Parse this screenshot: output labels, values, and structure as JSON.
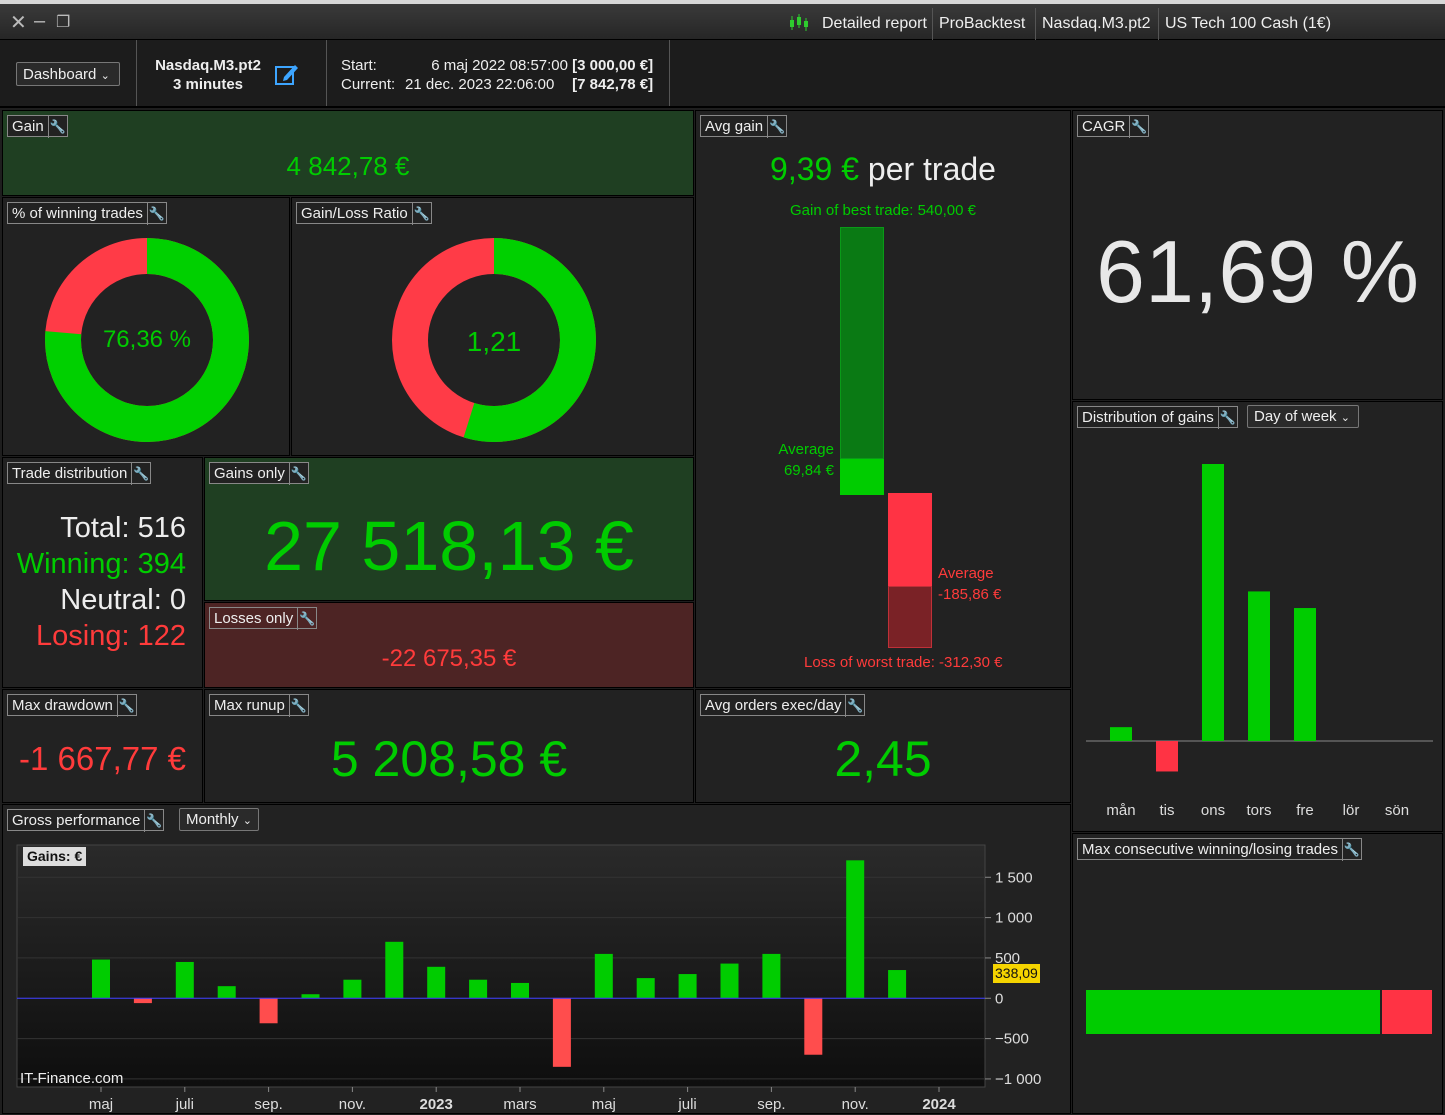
{
  "titlebar": {
    "tabs": [
      "Detailed report",
      "ProBacktest",
      "Nasdaq.M3.pt2",
      "US Tech 100 Cash (1€)"
    ]
  },
  "toolbar": {
    "dashboard_label": "Dashboard",
    "system_name": "Nasdaq.M3.pt2",
    "timeframe": "3 minutes",
    "start_label": "Start:",
    "start_value": "6 maj 2022 08:57:00",
    "start_capital": "[3 000,00 €]",
    "current_label": "Current:",
    "current_value": "21 dec. 2023 22:06:00",
    "current_capital": "[7 842,78 €]"
  },
  "gain": {
    "title": "Gain",
    "value": "4 842,78 €"
  },
  "winning_pct": {
    "title": "% of winning trades",
    "value": "76,36 %",
    "fraction": 0.7636
  },
  "gain_loss_ratio": {
    "title": "Gain/Loss Ratio",
    "value": "1,21",
    "fraction": 0.548
  },
  "avg_gain": {
    "title": "Avg gain",
    "value": "9,39 €",
    "suffix": "per trade",
    "best_label": "Gain of best trade: 540,00 €",
    "avg_gain_label": "Average",
    "avg_gain_value": "69,84 €",
    "avg_loss_label": "Average",
    "avg_loss_value": "-185,86 €",
    "worst_label": "Loss of worst trade: -312,30 €"
  },
  "cagr": {
    "title": "CAGR",
    "value": "61,69 %"
  },
  "trade_distribution": {
    "title": "Trade distribution",
    "total": "Total: 516",
    "winning": "Winning: 394",
    "neutral": "Neutral: 0",
    "losing": "Losing: 122"
  },
  "gains_only": {
    "title": "Gains only",
    "value": "27 518,13 €"
  },
  "losses_only": {
    "title": "Losses only",
    "value": "-22 675,35 €"
  },
  "max_drawdown": {
    "title": "Max drawdown",
    "value": "-1 667,77 €"
  },
  "max_runup": {
    "title": "Max runup",
    "value": "5 208,58 €"
  },
  "avg_orders": {
    "title": "Avg orders exec/day",
    "value": "2,45"
  },
  "distribution_of_gains": {
    "title": "Distribution of gains",
    "mode": "Day of week",
    "days": [
      "mån",
      "tis",
      "ons",
      "tors",
      "fre",
      "lör",
      "sön"
    ],
    "values": [
      0.05,
      -0.11,
      1.0,
      0.54,
      0.48,
      0,
      0
    ]
  },
  "max_consecutive": {
    "title": "Max consecutive winning/losing trades",
    "win_fraction": 0.855
  },
  "gross_performance": {
    "title": "Gross performance",
    "mode": "Monthly",
    "legend": "Gains: €",
    "watermark": "IT-Finance.com",
    "current_value": "338,09",
    "colors": {
      "positive": "#00cc00",
      "negative": "#ff4d4d",
      "zero_line": "#3c3cff"
    }
  },
  "chart_data": {
    "type": "bar",
    "categories": [
      "maj 2022",
      "jun 2022",
      "juli 2022",
      "aug 2022",
      "sep. 2022",
      "okt 2022",
      "nov. 2022",
      "dec 2022",
      "2023",
      "feb 2023",
      "mars 2023",
      "apr 2023",
      "maj 2023",
      "jun 2023",
      "juli 2023",
      "aug 2023",
      "sep. 2023",
      "okt 2023",
      "nov. 2023",
      "dec 2023"
    ],
    "values": [
      480,
      -60,
      450,
      150,
      -310,
      50,
      230,
      700,
      390,
      230,
      190,
      -850,
      550,
      250,
      300,
      430,
      550,
      -700,
      1710,
      350
    ],
    "x_tick_labels": [
      "maj",
      "juli",
      "sep.",
      "nov.",
      "2023",
      "mars",
      "maj",
      "juli",
      "sep.",
      "nov.",
      "2024"
    ],
    "y_ticks": [
      "1 500",
      "1 000",
      "500",
      "0",
      "−500",
      "−1 000"
    ],
    "ylim": [
      -1100,
      1900
    ]
  }
}
